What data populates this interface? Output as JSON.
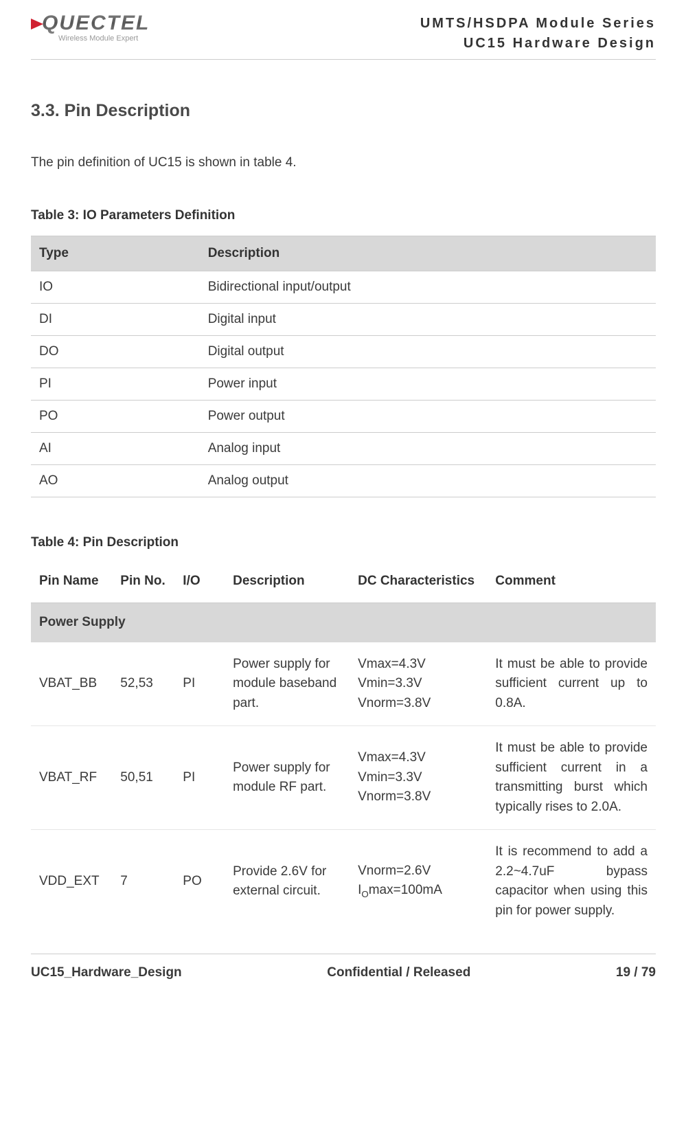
{
  "header": {
    "logo_name": "QUECTEL",
    "logo_sub": "Wireless Module Expert",
    "right_line1": "UMTS/HSDPA Module Series",
    "right_line2": "UC15 Hardware Design"
  },
  "section_heading": "3.3. Pin Description",
  "intro_para": "The pin definition of UC15 is shown in table 4.",
  "table3": {
    "caption": "Table 3: IO Parameters Definition",
    "columns": [
      "Type",
      "Description"
    ],
    "rows": [
      [
        "IO",
        "Bidirectional input/output"
      ],
      [
        "DI",
        "Digital input"
      ],
      [
        "DO",
        "Digital output"
      ],
      [
        "PI",
        "Power input"
      ],
      [
        "PO",
        "Power output"
      ],
      [
        "AI",
        "Analog input"
      ],
      [
        "AO",
        "Analog output"
      ]
    ]
  },
  "table4": {
    "caption": "Table 4: Pin Description",
    "section_label": "Power Supply",
    "columns": [
      "Pin Name",
      "Pin No.",
      "I/O",
      "Description",
      "DC Characteristics",
      "Comment"
    ],
    "col_widths": [
      "13%",
      "10%",
      "8%",
      "20%",
      "22%",
      "27%"
    ],
    "rows": [
      {
        "pin_name": "VBAT_BB",
        "pin_no": "52,53",
        "io": "PI",
        "desc": "Power supply for module baseband part.",
        "dc": "Vmax=4.3V\nVmin=3.3V\nVnorm=3.8V",
        "comment": "It must be able to provide sufficient current up to 0.8A."
      },
      {
        "pin_name": "VBAT_RF",
        "pin_no": "50,51",
        "io": "PI",
        "desc": "Power supply for module RF part.",
        "dc": "Vmax=4.3V\nVmin=3.3V\nVnorm=3.8V",
        "comment": "It must be able to provide sufficient current in a transmitting burst which typically rises to 2.0A."
      },
      {
        "pin_name": "VDD_EXT",
        "pin_no": "7",
        "io": "PO",
        "desc": "Provide 2.6V for external circuit.",
        "dc": "Vnorm=2.6V\nI{O}max=100mA",
        "comment": "It is recommend to add a 2.2~4.7uF bypass capacitor when using this pin for power supply."
      }
    ]
  },
  "footer": {
    "left": "UC15_Hardware_Design",
    "mid": "Confidential / Released",
    "right": "19 / 79"
  },
  "colors": {
    "header_bg": "#d8d8d8",
    "border": "#cccccc",
    "row_border": "#e6e6e6",
    "text": "#3a3a3a",
    "heading": "#4a4a4a",
    "logo_accent": "#d02030"
  },
  "typography": {
    "body_fontsize_pt": 14,
    "heading_fontsize_pt": 19,
    "caption_fontsize_pt": 14
  }
}
